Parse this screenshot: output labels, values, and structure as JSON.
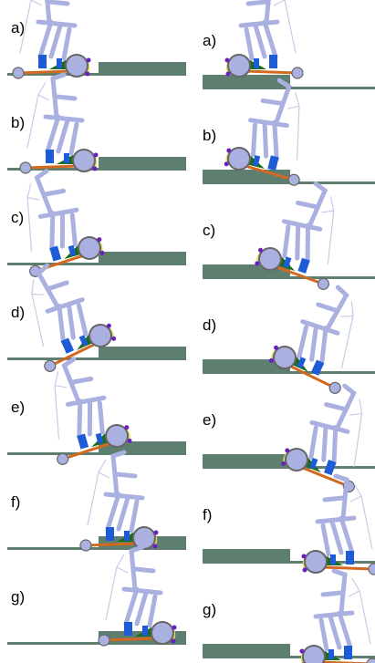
{
  "columns": [
    {
      "panels": [
        {
          "label": "a)"
        },
        {
          "label": "b)"
        },
        {
          "label": "c)"
        },
        {
          "label": "d)"
        },
        {
          "label": "e)"
        },
        {
          "label": "f)"
        },
        {
          "label": "g)"
        }
      ]
    },
    {
      "panels": [
        {
          "label": "a)"
        },
        {
          "label": "b)"
        },
        {
          "label": "c)"
        },
        {
          "label": "d)"
        },
        {
          "label": "e)"
        },
        {
          "label": "f)"
        },
        {
          "label": "g)"
        }
      ]
    }
  ]
}
